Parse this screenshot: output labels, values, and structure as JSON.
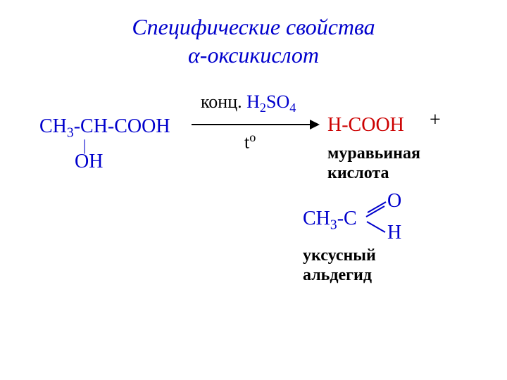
{
  "title": {
    "line1": "Специфические свойства",
    "line2": "α-оксикислот",
    "color": "#0000cc",
    "fontsize": 32,
    "style": "italic"
  },
  "reaction": {
    "reagent": {
      "formula_ch3": "CH",
      "formula_ch3_sub": "3",
      "formula_middle": "-CH-",
      "formula_cooh": "COOH",
      "bond_symbol": "|",
      "oh": "OH",
      "color": "#0000cc",
      "fontsize": 28
    },
    "conditions": {
      "top_black": "конц. ",
      "top_blue_h": "H",
      "top_blue_sub1": "2",
      "top_blue_so": "SO",
      "top_blue_sub2": "4",
      "bottom_t": "t",
      "bottom_sup": "o",
      "fontsize": 26,
      "black_color": "#000000",
      "blue_color": "#0000cc"
    },
    "arrow": {
      "line_color": "#000000",
      "width": 175,
      "thickness": 2
    },
    "product1": {
      "formula": "H-COOH",
      "color": "#cc0000",
      "fontsize": 28,
      "label_line1": "муравьиная",
      "label_line2": "кислота",
      "label_color": "#000000",
      "label_fontsize": 24
    },
    "plus": {
      "symbol": "+",
      "color": "#000000",
      "fontsize": 28
    },
    "product2": {
      "ch3c_ch": "CH",
      "ch3c_sub": "3",
      "ch3c_c": "-C",
      "aldehyde_o": "O",
      "aldehyde_h": "H",
      "color": "#0000cc",
      "fontsize": 28,
      "label_line1": "уксусный",
      "label_line2": "альдегид",
      "label_color": "#000000",
      "label_fontsize": 24,
      "bond_color": "#0000cc"
    }
  },
  "background_color": "#ffffff"
}
